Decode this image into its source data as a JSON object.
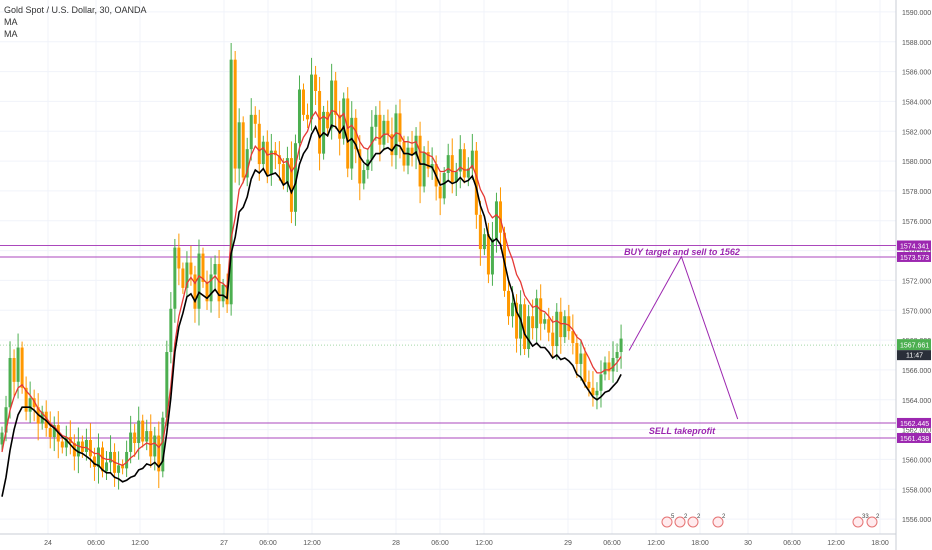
{
  "legend": {
    "symbol_line": "Gold Spot / U.S. Dollar, 30, OANDA",
    "ma1": "MA",
    "ma2": "MA"
  },
  "chart_data": {
    "type": "candlestick",
    "title": "Gold Spot / U.S. Dollar, 30, OANDA",
    "ylim": [
      1555,
      1590.8
    ],
    "y_ticks": [
      "1556.000",
      "1558.000",
      "1560.000",
      "1562.000",
      "1564.000",
      "1566.000",
      "1568.000",
      "1570.000",
      "1572.000",
      "1574.000",
      "1576.000",
      "1578.000",
      "1580.000",
      "1582.000",
      "1584.000",
      "1586.000",
      "1588.000",
      "1590.000"
    ],
    "x_ticks": [
      "24",
      "06:00",
      "12:00",
      "27",
      "06:00",
      "12:00",
      "28",
      "06:00",
      "12:00",
      "29",
      "06:00",
      "12:00",
      "18:00",
      "30",
      "06:00",
      "12:00",
      "18:00"
    ],
    "grid": true,
    "colors": {
      "up": "#4caf50",
      "down": "#ff9800",
      "ma_fast": "#e53935",
      "ma_slow": "#000000",
      "levels": "#ab47bc",
      "annotation": "#9c27b0",
      "last_price": "#4caf50",
      "level_badge": "#9c27b0"
    },
    "close_series": [
      1561.8,
      1563.5,
      1566.8,
      1565.2,
      1567.5,
      1564.8,
      1563.2,
      1564.1,
      1563.5,
      1562.4,
      1563.2,
      1562.1,
      1561.5,
      1562.3,
      1561.2,
      1560.8,
      1561.5,
      1561.1,
      1560.2,
      1561.2,
      1560.5,
      1561.3,
      1560.2,
      1559.5,
      1560.8,
      1559.2,
      1559.8,
      1560.5,
      1559.1,
      1559.6,
      1559.4,
      1560.5,
      1561.8,
      1561.1,
      1562.6,
      1561.2,
      1561.9,
      1560.2,
      1561.6,
      1559.2,
      1562.8,
      1567.2,
      1570.1,
      1574.2,
      1572.8,
      1571.5,
      1573.2,
      1572.4,
      1570.1,
      1573.8,
      1571.9,
      1570.6,
      1572.4,
      1573.1,
      1570.6,
      1571.7,
      1570.4,
      1586.8,
      1579.5,
      1582.6,
      1578.9,
      1580.8,
      1583.1,
      1582.5,
      1579.8,
      1581.3,
      1579.1,
      1580.7,
      1580.4,
      1579.8,
      1578.5,
      1580.2,
      1576.6,
      1581.2,
      1584.8,
      1583.1,
      1582.8,
      1585.8,
      1584.7,
      1580.5,
      1583.3,
      1582.2,
      1585.4,
      1583.1,
      1581.5,
      1584.2,
      1579.5,
      1582.9,
      1580.8,
      1578.5,
      1579.4,
      1580.1,
      1582.3,
      1583.1,
      1581.1,
      1582.7,
      1581.8,
      1580.4,
      1583.2,
      1581.3,
      1579.7,
      1580.9,
      1580.4,
      1581.7,
      1578.3,
      1580.6,
      1579.5,
      1579.8,
      1578.3,
      1577.5,
      1579.2,
      1580.4,
      1578.6,
      1579.3,
      1580.8,
      1578.9,
      1579.5,
      1580.7,
      1576.4,
      1574.1,
      1575.1,
      1572.4,
      1574.8,
      1577.3,
      1575.2,
      1571.3,
      1569.6,
      1570.5,
      1568.1,
      1570.4,
      1567.4,
      1569.6,
      1568.8,
      1570.8,
      1569.1,
      1569.4,
      1568.5,
      1567.6,
      1569.9,
      1568.2,
      1569.6,
      1568.6,
      1567.8,
      1566.4,
      1567.1,
      1565.2,
      1564.8,
      1564.3,
      1564.6,
      1565.7,
      1566.5,
      1565.9,
      1566.8,
      1567.2,
      1568.1
    ],
    "ma_fast": [
      1560.5,
      1561.9,
      1563.3,
      1564.2,
      1564.8,
      1565.0,
      1564.6,
      1564.3,
      1563.9,
      1563.4,
      1563.1,
      1562.8,
      1562.4,
      1562.2,
      1561.9,
      1561.6,
      1561.5,
      1561.3,
      1561.0,
      1560.9,
      1560.8,
      1560.8,
      1560.6,
      1560.4,
      1560.4,
      1560.1,
      1560.0,
      1560.0,
      1559.8,
      1559.7,
      1559.6,
      1559.8,
      1560.1,
      1560.3,
      1560.7,
      1560.9,
      1561.1,
      1561.0,
      1561.1,
      1560.8,
      1561.2,
      1562.8,
      1564.9,
      1567.8,
      1569.6,
      1570.7,
      1571.8,
      1572.2,
      1571.8,
      1572.3,
      1572.1,
      1571.8,
      1572.0,
      1572.3,
      1571.9,
      1571.8,
      1571.5,
      1574.8,
      1576.2,
      1578.1,
      1578.6,
      1579.3,
      1580.4,
      1581.0,
      1580.7,
      1580.9,
      1580.4,
      1580.5,
      1580.5,
      1580.3,
      1579.9,
      1580.0,
      1579.3,
      1579.7,
      1580.9,
      1581.6,
      1582.0,
      1582.9,
      1583.3,
      1582.8,
      1583.0,
      1582.8,
      1583.4,
      1583.3,
      1582.9,
      1583.2,
      1582.2,
      1582.4,
      1582.0,
      1581.3,
      1580.9,
      1580.8,
      1581.2,
      1581.6,
      1581.5,
      1581.8,
      1581.8,
      1581.5,
      1581.9,
      1581.8,
      1581.3,
      1581.3,
      1581.2,
      1581.3,
      1580.6,
      1580.6,
      1580.4,
      1580.3,
      1579.8,
      1579.3,
      1579.3,
      1579.5,
      1579.3,
      1579.3,
      1579.6,
      1579.4,
      1579.4,
      1579.7,
      1579.0,
      1578.1,
      1577.6,
      1576.6,
      1576.2,
      1576.4,
      1576.1,
      1575.1,
      1574.1,
      1573.4,
      1572.4,
      1571.9,
      1571.0,
      1570.6,
      1570.2,
      1570.3,
      1570.0,
      1569.9,
      1569.6,
      1569.2,
      1569.3,
      1569.1,
      1569.1,
      1569.0,
      1568.7,
      1568.2,
      1568.0,
      1567.3,
      1566.8,
      1566.2,
      1565.8,
      1565.8,
      1566.0,
      1566.0,
      1566.2,
      1566.5,
      1566.9
    ],
    "ma_slow": [
      1557.5,
      1558.8,
      1560.6,
      1562.0,
      1563.0,
      1563.5,
      1563.5,
      1563.5,
      1563.3,
      1563.0,
      1562.8,
      1562.6,
      1562.3,
      1562.1,
      1561.8,
      1561.5,
      1561.3,
      1561.0,
      1560.7,
      1560.5,
      1560.4,
      1560.2,
      1560.0,
      1559.7,
      1559.6,
      1559.3,
      1559.1,
      1559.1,
      1558.8,
      1558.7,
      1558.5,
      1558.6,
      1558.8,
      1558.9,
      1559.3,
      1559.4,
      1559.7,
      1559.6,
      1559.8,
      1559.5,
      1559.9,
      1561.8,
      1564.1,
      1567.2,
      1568.9,
      1569.8,
      1570.9,
      1571.1,
      1570.6,
      1571.2,
      1571.0,
      1570.8,
      1571.1,
      1571.4,
      1571.0,
      1571.0,
      1570.8,
      1573.8,
      1574.9,
      1576.6,
      1576.9,
      1577.6,
      1578.8,
      1579.4,
      1579.2,
      1579.5,
      1579.0,
      1579.1,
      1579.2,
      1578.9,
      1578.4,
      1578.6,
      1577.9,
      1578.5,
      1579.8,
      1580.5,
      1580.9,
      1581.8,
      1582.3,
      1581.6,
      1581.9,
      1581.7,
      1582.4,
      1582.3,
      1581.9,
      1582.3,
      1581.3,
      1581.5,
      1581.1,
      1580.3,
      1579.9,
      1579.7,
      1580.1,
      1580.5,
      1580.5,
      1580.8,
      1580.9,
      1580.7,
      1581.1,
      1581.0,
      1580.5,
      1580.5,
      1580.4,
      1580.6,
      1579.8,
      1579.8,
      1579.7,
      1579.6,
      1579.0,
      1578.4,
      1578.5,
      1578.7,
      1578.5,
      1578.6,
      1578.9,
      1578.6,
      1578.7,
      1579.0,
      1578.2,
      1577.0,
      1576.3,
      1575.0,
      1574.6,
      1574.8,
      1574.4,
      1573.2,
      1572.0,
      1571.2,
      1569.9,
      1569.4,
      1568.4,
      1568.0,
      1567.6,
      1567.8,
      1567.5,
      1567.5,
      1567.2,
      1566.8,
      1567.0,
      1566.7,
      1566.8,
      1566.6,
      1566.3,
      1565.7,
      1565.5,
      1565.0,
      1564.6,
      1564.2,
      1564.0,
      1564.2,
      1564.5,
      1564.6,
      1564.9,
      1565.2,
      1565.7
    ],
    "levels": [
      {
        "price": 1574.341,
        "label": "1574.341"
      },
      {
        "price": 1573.573,
        "label": "1573.573"
      },
      {
        "price": 1562.445,
        "label": "1562.445"
      },
      {
        "price": 1561.438,
        "label": "1561.438"
      }
    ],
    "annotations": [
      {
        "text": "BUY target and sell to 1562",
        "price": 1573.9
      },
      {
        "text": "SELL takeprofit",
        "price": 1561.9
      }
    ],
    "projection": [
      {
        "t": 156,
        "price": 1567.3
      },
      {
        "t": 169,
        "price": 1573.6
      },
      {
        "t": 183,
        "price": 1562.7
      }
    ],
    "last_price": {
      "price": 1567.661,
      "label": "1567.661",
      "countdown": "11:47"
    },
    "bottom_icons": [
      "5",
      "2",
      "2",
      "2",
      "2",
      "33",
      "2"
    ]
  }
}
